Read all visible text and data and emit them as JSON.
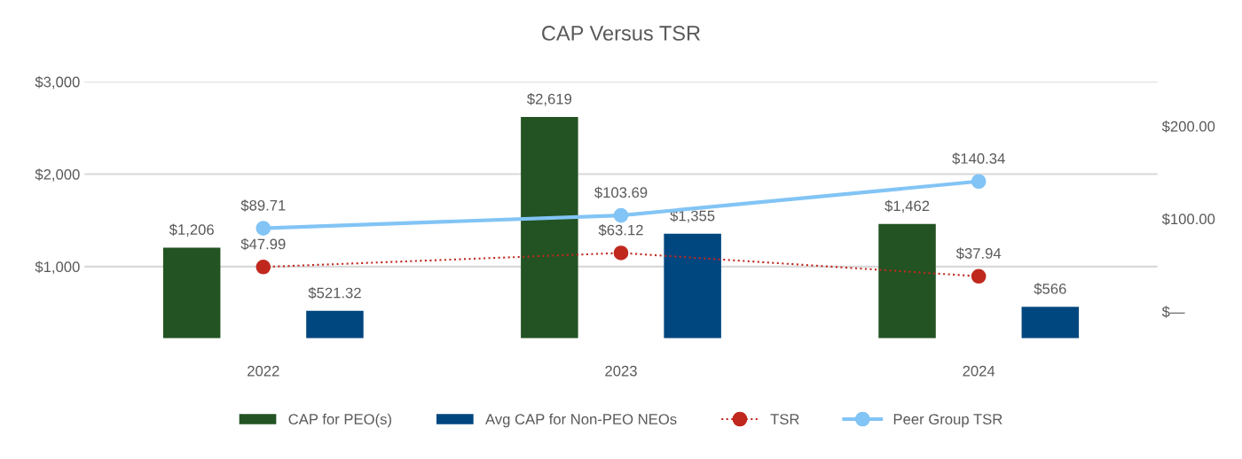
{
  "chart_data": {
    "type": "bar",
    "title": "CAP Versus TSR",
    "categories": [
      "2022",
      "2023",
      "2024"
    ],
    "series": [
      {
        "name": "CAP for PEO(s)",
        "color": "#235323",
        "values": [
          1206,
          2619,
          1462
        ],
        "value_labels": [
          "$1,206",
          "$2,619",
          "$1,462"
        ]
      },
      {
        "name": "Avg CAP for Non-PEO NEOs",
        "color": "#00467f",
        "values": [
          521.32,
          1355,
          566
        ],
        "value_labels": [
          "$521.32",
          "$1,355",
          "$566"
        ]
      },
      {
        "name": "TSR",
        "type": "line",
        "axis": "y2",
        "color": "#c0281e",
        "line_style": "dotted",
        "marker": "circle",
        "values": [
          47.99,
          63.12,
          37.94
        ],
        "value_labels": [
          "$47.99",
          "$63.12",
          "$37.94"
        ]
      },
      {
        "name": "Peer Group TSR",
        "type": "line",
        "axis": "y2",
        "color": "#82c4f5",
        "line_style": "solid",
        "marker": "circle",
        "values": [
          89.71,
          103.69,
          140.34
        ],
        "value_labels": [
          "$89.71",
          "$103.69",
          "$140.34"
        ]
      }
    ],
    "ylim": [
      225,
      3000
    ],
    "yticks": [
      {
        "value": 1000,
        "label": "$1,000"
      },
      {
        "value": 2000,
        "label": "$2,000"
      },
      {
        "value": 3000,
        "label": "$3,000"
      }
    ],
    "y2lim": [
      -29,
      248
    ],
    "y2ticks": [
      {
        "value": 0,
        "label": "$—"
      },
      {
        "value": 100,
        "label": "$100.00"
      },
      {
        "value": 200,
        "label": "$200.00"
      }
    ],
    "grid": "y",
    "legend": "bottom"
  }
}
